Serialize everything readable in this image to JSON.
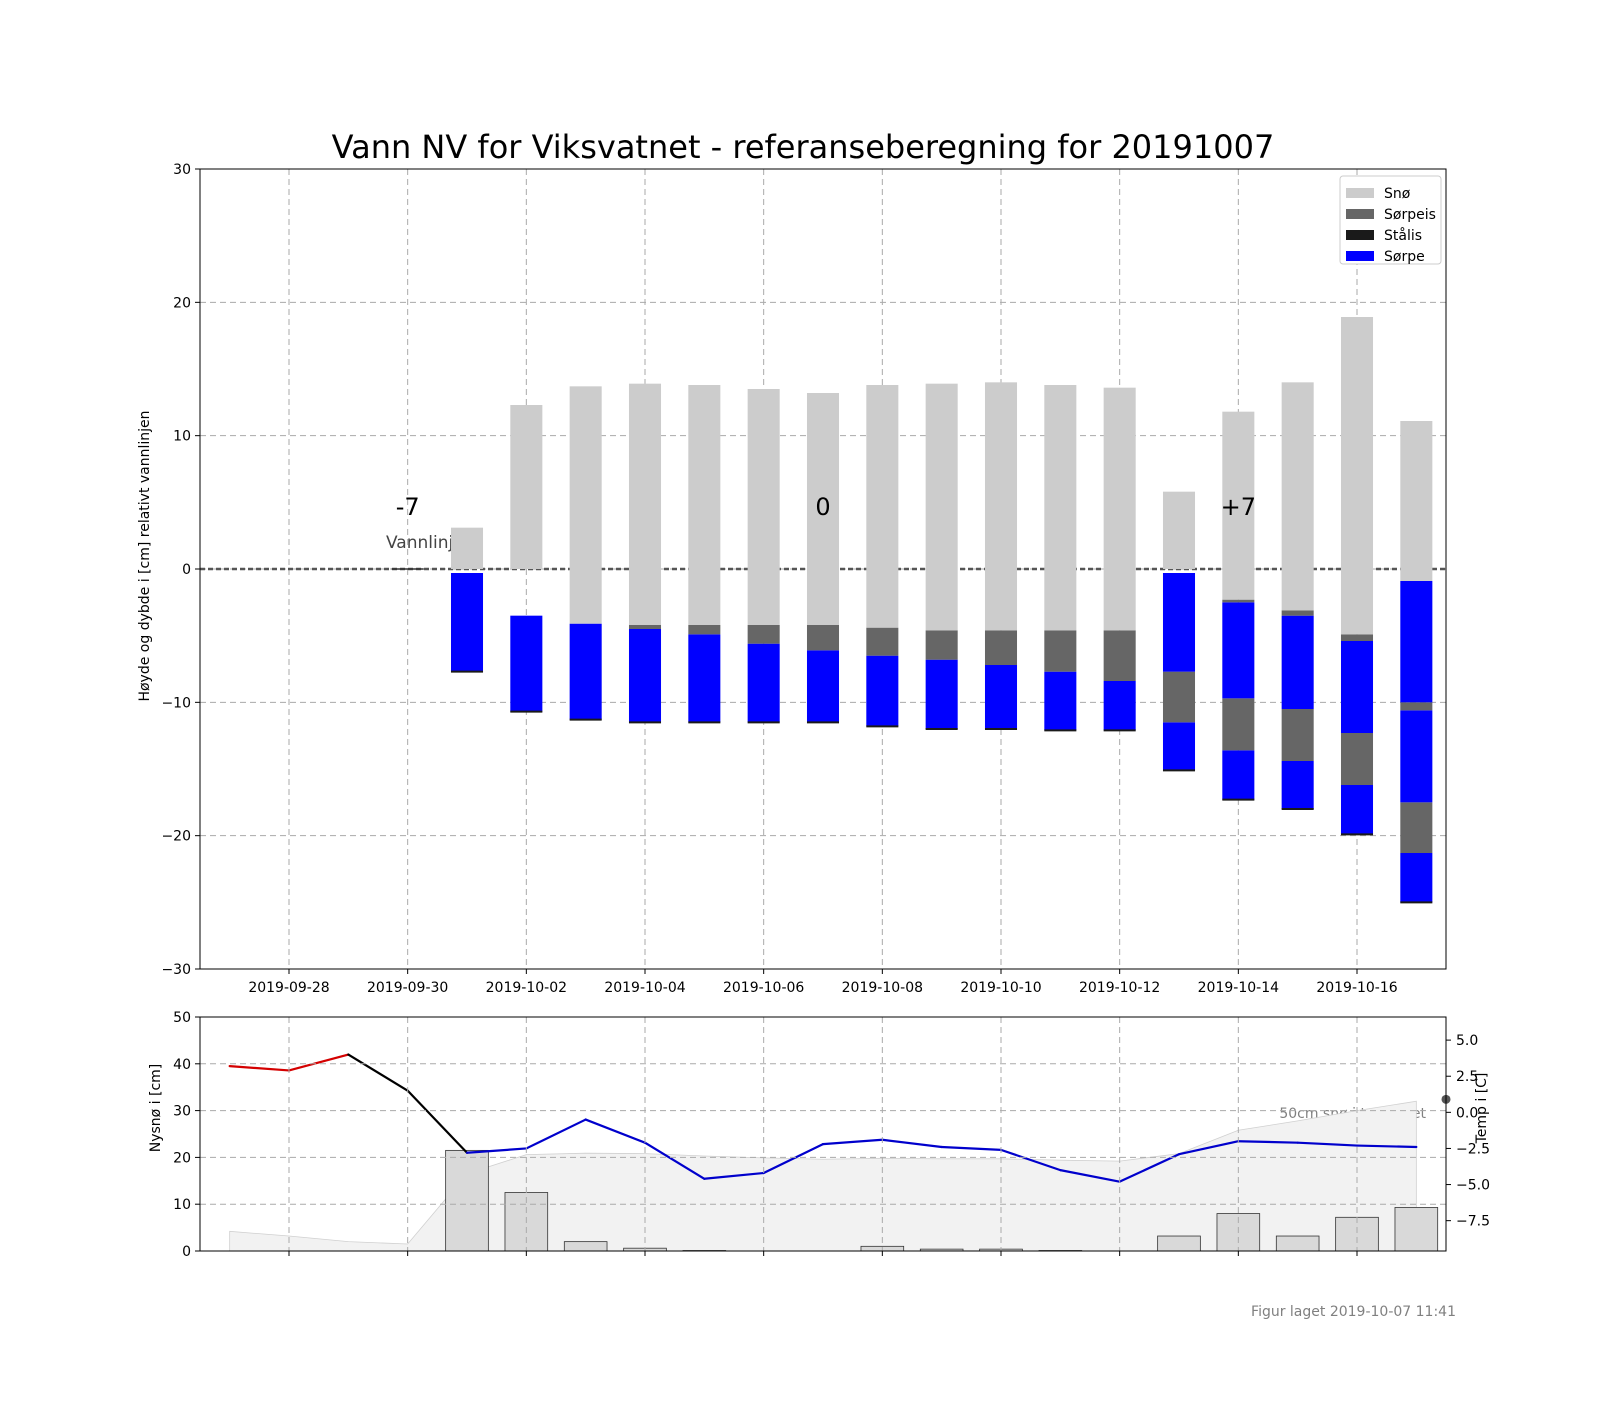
{
  "chart_data": [
    {
      "type": "bar",
      "title": "Vann NV for Viksvatnet - referanseberegning for 20191007",
      "xlabel": "",
      "ylabel": "Høyde og dybde i [cm] relativt vannlinjen",
      "ylim": [
        -30,
        30
      ],
      "yticks": [
        -30,
        -20,
        -10,
        0,
        10,
        20,
        30
      ],
      "xlim_dates": [
        "2019-09-27",
        "2019-10-17"
      ],
      "xticks": [
        "2019-09-28",
        "2019-09-30",
        "2019-10-02",
        "2019-10-04",
        "2019-10-06",
        "2019-10-08",
        "2019-10-10",
        "2019-10-12",
        "2019-10-14",
        "2019-10-16"
      ],
      "grid": true,
      "legend_position": "top-right",
      "colors": {
        "snow": "#cccccc",
        "slush_ice": "#666666",
        "black_ice": "#1a1a1a",
        "slush": "#0000ff",
        "grid": "#aaaaaa",
        "waterline": "#555555"
      },
      "legend": [
        {
          "key": "snow",
          "label": "Snø"
        },
        {
          "key": "slush_ice",
          "label": "Sørpeis"
        },
        {
          "key": "black_ice",
          "label": "Stålis"
        },
        {
          "key": "slush",
          "label": "Sørpe"
        }
      ],
      "waterline": {
        "value": 0,
        "label": "Vannlinje"
      },
      "day_markers": [
        {
          "date": "2019-09-30",
          "label": "-7"
        },
        {
          "date": "2019-10-07",
          "label": "0"
        },
        {
          "date": "2019-10-14",
          "label": "+7"
        }
      ],
      "series_note": "each layer given as [bottom, top] in cm relative to waterline",
      "bars": [
        {
          "date": "2019-10-01",
          "layers": [
            {
              "key": "slush",
              "range": [
                -7.7,
                -0.3
              ]
            },
            {
              "key": "snow",
              "range": [
                0,
                3.1
              ]
            }
          ]
        },
        {
          "date": "2019-10-02",
          "layers": [
            {
              "key": "slush",
              "range": [
                -10.7,
                -3.5
              ]
            },
            {
              "key": "snow",
              "range": [
                0,
                12.3
              ]
            }
          ]
        },
        {
          "date": "2019-10-03",
          "layers": [
            {
              "key": "slush",
              "range": [
                -11.3,
                -4.1
              ]
            },
            {
              "key": "snow",
              "range": [
                -4.1,
                13.7
              ]
            }
          ]
        },
        {
          "date": "2019-10-04",
          "layers": [
            {
              "key": "slush",
              "range": [
                -11.5,
                -4.5
              ]
            },
            {
              "key": "slush_ice",
              "range": [
                -4.5,
                -4.2
              ]
            },
            {
              "key": "snow",
              "range": [
                -4.2,
                13.9
              ]
            }
          ]
        },
        {
          "date": "2019-10-05",
          "layers": [
            {
              "key": "slush",
              "range": [
                -11.5,
                -4.9
              ]
            },
            {
              "key": "slush_ice",
              "range": [
                -4.9,
                -4.2
              ]
            },
            {
              "key": "snow",
              "range": [
                -4.2,
                13.8
              ]
            }
          ]
        },
        {
          "date": "2019-10-06",
          "layers": [
            {
              "key": "slush",
              "range": [
                -11.5,
                -5.6
              ]
            },
            {
              "key": "slush_ice",
              "range": [
                -5.6,
                -4.2
              ]
            },
            {
              "key": "snow",
              "range": [
                -4.2,
                13.5
              ]
            }
          ]
        },
        {
          "date": "2019-10-07",
          "layers": [
            {
              "key": "slush",
              "range": [
                -11.5,
                -6.1
              ]
            },
            {
              "key": "slush_ice",
              "range": [
                -6.1,
                -4.2
              ]
            },
            {
              "key": "snow",
              "range": [
                -4.2,
                13.2
              ]
            }
          ]
        },
        {
          "date": "2019-10-08",
          "layers": [
            {
              "key": "slush",
              "range": [
                -11.8,
                -6.5
              ]
            },
            {
              "key": "slush_ice",
              "range": [
                -6.5,
                -4.4
              ]
            },
            {
              "key": "snow",
              "range": [
                -4.4,
                13.8
              ]
            }
          ]
        },
        {
          "date": "2019-10-09",
          "layers": [
            {
              "key": "slush",
              "range": [
                -12.0,
                -6.8
              ]
            },
            {
              "key": "slush_ice",
              "range": [
                -6.8,
                -4.6
              ]
            },
            {
              "key": "snow",
              "range": [
                -4.6,
                13.9
              ]
            }
          ]
        },
        {
          "date": "2019-10-10",
          "layers": [
            {
              "key": "slush",
              "range": [
                -12.0,
                -7.2
              ]
            },
            {
              "key": "slush_ice",
              "range": [
                -7.2,
                -4.6
              ]
            },
            {
              "key": "snow",
              "range": [
                -4.6,
                14.0
              ]
            }
          ]
        },
        {
          "date": "2019-10-11",
          "layers": [
            {
              "key": "slush",
              "range": [
                -12.1,
                -7.7
              ]
            },
            {
              "key": "slush_ice",
              "range": [
                -7.7,
                -4.6
              ]
            },
            {
              "key": "snow",
              "range": [
                -4.6,
                13.8
              ]
            }
          ]
        },
        {
          "date": "2019-10-12",
          "layers": [
            {
              "key": "slush",
              "range": [
                -12.1,
                -8.4
              ]
            },
            {
              "key": "slush_ice",
              "range": [
                -8.4,
                -4.6
              ]
            },
            {
              "key": "snow",
              "range": [
                -4.6,
                13.6
              ]
            }
          ]
        },
        {
          "date": "2019-10-13",
          "layers": [
            {
              "key": "slush",
              "range": [
                -15.1,
                -11.5
              ]
            },
            {
              "key": "slush_ice",
              "range": [
                -11.5,
                -7.7
              ]
            },
            {
              "key": "slush",
              "range": [
                -7.7,
                -0.3
              ]
            },
            {
              "key": "snow",
              "range": [
                0,
                5.8
              ]
            }
          ]
        },
        {
          "date": "2019-10-14",
          "layers": [
            {
              "key": "slush",
              "range": [
                -17.3,
                -13.6
              ]
            },
            {
              "key": "slush_ice",
              "range": [
                -13.6,
                -9.7
              ]
            },
            {
              "key": "slush",
              "range": [
                -9.7,
                -2.5
              ]
            },
            {
              "key": "slush_ice",
              "range": [
                -2.5,
                -2.3
              ]
            },
            {
              "key": "snow",
              "range": [
                -2.3,
                11.8
              ]
            }
          ]
        },
        {
          "date": "2019-10-15",
          "layers": [
            {
              "key": "slush",
              "range": [
                -18.0,
                -14.4
              ]
            },
            {
              "key": "slush_ice",
              "range": [
                -14.4,
                -10.5
              ]
            },
            {
              "key": "slush",
              "range": [
                -10.5,
                -3.5
              ]
            },
            {
              "key": "slush_ice",
              "range": [
                -3.5,
                -3.1
              ]
            },
            {
              "key": "snow",
              "range": [
                -3.1,
                14.0
              ]
            }
          ]
        },
        {
          "date": "2019-10-16",
          "layers": [
            {
              "key": "slush",
              "range": [
                -19.9,
                -16.2
              ]
            },
            {
              "key": "slush_ice",
              "range": [
                -16.2,
                -12.3
              ]
            },
            {
              "key": "slush",
              "range": [
                -12.3,
                -5.4
              ]
            },
            {
              "key": "slush_ice",
              "range": [
                -5.4,
                -4.9
              ]
            },
            {
              "key": "snow",
              "range": [
                -4.9,
                18.9
              ]
            }
          ]
        },
        {
          "date": "2019-10-17",
          "layers": [
            {
              "key": "slush",
              "range": [
                -25.0,
                -21.3
              ]
            },
            {
              "key": "slush_ice",
              "range": [
                -21.3,
                -17.5
              ]
            },
            {
              "key": "slush",
              "range": [
                -17.5,
                -10.6
              ]
            },
            {
              "key": "slush_ice",
              "range": [
                -10.6,
                -10.0
              ]
            },
            {
              "key": "slush",
              "range": [
                -10.0,
                -0.9
              ]
            },
            {
              "key": "snow",
              "range": [
                -0.9,
                11.1
              ]
            }
          ]
        }
      ]
    },
    {
      "type": "bar",
      "xlabel": "",
      "ylabel": "Nysnø i [cm]",
      "y2label": "Temp i [C]",
      "ylim": [
        0,
        50
      ],
      "yticks": [
        0,
        10,
        20,
        30,
        40,
        50
      ],
      "y2lim": [
        -9.6,
        6.6
      ],
      "y2ticks": [
        -7.5,
        -5.0,
        -2.5,
        0.0,
        2.5,
        5.0
      ],
      "grid": true,
      "colors": {
        "new_snow": "#d9d9d9",
        "terrain_fill": "#f2f2f2",
        "temp_warm": "#d40000",
        "temp_past": "#000000",
        "temp_forecast": "#0000cc"
      },
      "terrain_label": "50cm snø i terrenget",
      "new_snow": [
        {
          "date": "2019-10-01",
          "value": 21.5
        },
        {
          "date": "2019-10-02",
          "value": 12.5
        },
        {
          "date": "2019-10-03",
          "value": 2.0
        },
        {
          "date": "2019-10-04",
          "value": 0.6
        },
        {
          "date": "2019-10-05",
          "value": 0.1
        },
        {
          "date": "2019-10-08",
          "value": 1.0
        },
        {
          "date": "2019-10-09",
          "value": 0.4
        },
        {
          "date": "2019-10-10",
          "value": 0.4
        },
        {
          "date": "2019-10-11",
          "value": 0.1
        },
        {
          "date": "2019-10-13",
          "value": 3.2
        },
        {
          "date": "2019-10-14",
          "value": 8.0
        },
        {
          "date": "2019-10-15",
          "value": 3.2
        },
        {
          "date": "2019-10-16",
          "value": 7.2
        },
        {
          "date": "2019-10-17",
          "value": 9.3
        }
      ],
      "terrain_snow": [
        {
          "date": "2019-09-27",
          "value": 4.2
        },
        {
          "date": "2019-09-28",
          "value": 3.2
        },
        {
          "date": "2019-09-29",
          "value": 2.0
        },
        {
          "date": "2019-09-30",
          "value": 1.5
        },
        {
          "date": "2019-10-01",
          "value": 16.5
        },
        {
          "date": "2019-10-02",
          "value": 20.6
        },
        {
          "date": "2019-10-03",
          "value": 20.9
        },
        {
          "date": "2019-10-04",
          "value": 20.8
        },
        {
          "date": "2019-10-05",
          "value": 20.3
        },
        {
          "date": "2019-10-06",
          "value": 19.9
        },
        {
          "date": "2019-10-07",
          "value": 19.6
        },
        {
          "date": "2019-10-08",
          "value": 19.8
        },
        {
          "date": "2019-10-09",
          "value": 19.7
        },
        {
          "date": "2019-10-10",
          "value": 19.7
        },
        {
          "date": "2019-10-11",
          "value": 19.4
        },
        {
          "date": "2019-10-12",
          "value": 19.2
        },
        {
          "date": "2019-10-13",
          "value": 20.8
        },
        {
          "date": "2019-10-14",
          "value": 25.8
        },
        {
          "date": "2019-10-15",
          "value": 27.8
        },
        {
          "date": "2019-10-16",
          "value": 30.0
        },
        {
          "date": "2019-10-17",
          "value": 32.0
        }
      ],
      "temperature": [
        {
          "date": "2019-09-27",
          "value": 3.2,
          "segment": "warm"
        },
        {
          "date": "2019-09-28",
          "value": 2.9,
          "segment": "warm"
        },
        {
          "date": "2019-09-29",
          "value": 4.0,
          "segment": "warm"
        },
        {
          "date": "2019-09-30",
          "value": 1.5,
          "segment": "past"
        },
        {
          "date": "2019-10-01",
          "value": -2.8,
          "segment": "forecast"
        },
        {
          "date": "2019-10-02",
          "value": -2.5,
          "segment": "forecast"
        },
        {
          "date": "2019-10-03",
          "value": -0.5,
          "segment": "forecast"
        },
        {
          "date": "2019-10-04",
          "value": -2.1,
          "segment": "forecast"
        },
        {
          "date": "2019-10-05",
          "value": -4.6,
          "segment": "forecast"
        },
        {
          "date": "2019-10-06",
          "value": -4.2,
          "segment": "forecast"
        },
        {
          "date": "2019-10-07",
          "value": -2.2,
          "segment": "forecast"
        },
        {
          "date": "2019-10-08",
          "value": -1.9,
          "segment": "forecast"
        },
        {
          "date": "2019-10-09",
          "value": -2.4,
          "segment": "forecast"
        },
        {
          "date": "2019-10-10",
          "value": -2.6,
          "segment": "forecast"
        },
        {
          "date": "2019-10-11",
          "value": -4.0,
          "segment": "forecast"
        },
        {
          "date": "2019-10-12",
          "value": -4.8,
          "segment": "forecast"
        },
        {
          "date": "2019-10-13",
          "value": -2.9,
          "segment": "forecast"
        },
        {
          "date": "2019-10-14",
          "value": -2.0,
          "segment": "forecast"
        },
        {
          "date": "2019-10-15",
          "value": -2.1,
          "segment": "forecast"
        },
        {
          "date": "2019-10-16",
          "value": -2.3,
          "segment": "forecast"
        },
        {
          "date": "2019-10-17",
          "value": -2.4,
          "segment": "forecast"
        }
      ]
    }
  ],
  "footer": {
    "created": "Figur laget 2019-10-07 11:41"
  }
}
